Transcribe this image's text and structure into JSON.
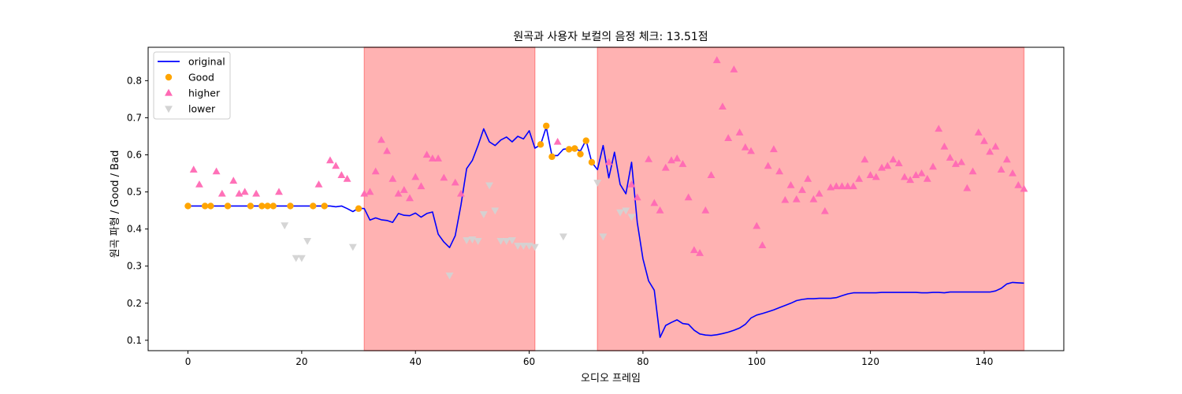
{
  "chart_data": {
    "type": "line",
    "title": "원곡과 사용자 보컬의 음정 체크: 13.51점",
    "xlabel": "오디오 프레임",
    "ylabel": "원곡 파형 / Good / Bad",
    "xlim": [
      -7,
      154
    ],
    "ylim": [
      0.072,
      0.89
    ],
    "x_ticks": [
      0,
      20,
      40,
      60,
      80,
      100,
      120,
      140
    ],
    "y_ticks": [
      0.1,
      0.2,
      0.3,
      0.4,
      0.5,
      0.6,
      0.7,
      0.8
    ],
    "grid": false,
    "legend_position": "top-left",
    "bad_regions": [
      [
        31,
        61
      ],
      [
        72,
        147
      ]
    ],
    "colors": {
      "original": "#0000ff",
      "good": "#ffa500",
      "higher": "#ff69b4",
      "lower": "#d3d3d3",
      "region": "#ff0000"
    },
    "series": [
      {
        "name": "original",
        "kind": "line",
        "x": [
          0,
          1,
          2,
          3,
          4,
          5,
          6,
          7,
          8,
          9,
          10,
          11,
          12,
          13,
          14,
          15,
          16,
          17,
          18,
          19,
          20,
          21,
          22,
          23,
          24,
          25,
          26,
          27,
          28,
          29,
          30,
          31,
          32,
          33,
          34,
          35,
          36,
          37,
          38,
          39,
          40,
          41,
          42,
          43,
          44,
          45,
          46,
          47,
          48,
          49,
          50,
          51,
          52,
          53,
          54,
          55,
          56,
          57,
          58,
          59,
          60,
          61,
          62,
          63,
          64,
          65,
          66,
          67,
          68,
          69,
          70,
          71,
          72,
          73,
          74,
          75,
          76,
          77,
          78,
          79,
          80,
          81,
          82,
          83,
          84,
          85,
          86,
          87,
          88,
          89,
          90,
          91,
          92,
          93,
          94,
          95,
          96,
          97,
          98,
          99,
          100,
          101,
          102,
          103,
          104,
          105,
          106,
          107,
          108,
          109,
          110,
          111,
          112,
          113,
          114,
          115,
          116,
          117,
          118,
          119,
          120,
          121,
          122,
          123,
          124,
          125,
          126,
          127,
          128,
          129,
          130,
          131,
          132,
          133,
          134,
          135,
          136,
          137,
          138,
          139,
          140,
          141,
          142,
          143,
          144,
          145,
          146,
          147
        ],
        "y": [
          0.462,
          0.462,
          0.462,
          0.462,
          0.462,
          0.462,
          0.462,
          0.462,
          0.462,
          0.462,
          0.462,
          0.462,
          0.462,
          0.462,
          0.462,
          0.462,
          0.462,
          0.462,
          0.462,
          0.462,
          0.462,
          0.462,
          0.462,
          0.462,
          0.462,
          0.462,
          0.46,
          0.462,
          0.455,
          0.447,
          0.456,
          0.455,
          0.424,
          0.43,
          0.425,
          0.423,
          0.418,
          0.442,
          0.437,
          0.436,
          0.443,
          0.432,
          0.442,
          0.446,
          0.386,
          0.365,
          0.35,
          0.382,
          0.465,
          0.563,
          0.585,
          0.625,
          0.67,
          0.635,
          0.625,
          0.64,
          0.648,
          0.635,
          0.65,
          0.643,
          0.665,
          0.618,
          0.627,
          0.675,
          0.598,
          0.598,
          0.615,
          0.617,
          0.618,
          0.61,
          0.64,
          0.58,
          0.56,
          0.625,
          0.538,
          0.607,
          0.52,
          0.495,
          0.58,
          0.418,
          0.32,
          0.26,
          0.235,
          0.108,
          0.14,
          0.148,
          0.155,
          0.145,
          0.143,
          0.127,
          0.117,
          0.114,
          0.113,
          0.115,
          0.118,
          0.122,
          0.127,
          0.133,
          0.143,
          0.16,
          0.168,
          0.172,
          0.177,
          0.182,
          0.188,
          0.194,
          0.2,
          0.207,
          0.21,
          0.212,
          0.212,
          0.213,
          0.213,
          0.213,
          0.215,
          0.22,
          0.225,
          0.228,
          0.228,
          0.228,
          0.228,
          0.228,
          0.229,
          0.229,
          0.229,
          0.229,
          0.229,
          0.229,
          0.229,
          0.228,
          0.228,
          0.229,
          0.229,
          0.228,
          0.23,
          0.23,
          0.23,
          0.23,
          0.23,
          0.23,
          0.23,
          0.23,
          0.233,
          0.24,
          0.252,
          0.256,
          0.255,
          0.254
        ]
      },
      {
        "name": "Good",
        "kind": "scatter",
        "marker": "circle",
        "x": [
          0,
          3,
          4,
          7,
          11,
          13,
          14,
          15,
          18,
          22,
          24,
          30,
          62,
          63,
          64,
          67,
          68,
          69,
          70,
          71
        ],
        "y": [
          0.462,
          0.462,
          0.462,
          0.462,
          0.462,
          0.462,
          0.462,
          0.462,
          0.462,
          0.462,
          0.462,
          0.455,
          0.628,
          0.678,
          0.595,
          0.615,
          0.617,
          0.602,
          0.638,
          0.58
        ]
      },
      {
        "name": "higher",
        "kind": "scatter",
        "marker": "triangle-up",
        "x": [
          1,
          2,
          5,
          6,
          8,
          9,
          10,
          12,
          16,
          23,
          25,
          26,
          27,
          28,
          31,
          32,
          33,
          34,
          35,
          36,
          37,
          38,
          39,
          40,
          41,
          42,
          43,
          44,
          45,
          47,
          48,
          65,
          74,
          78,
          79,
          81,
          82,
          83,
          84,
          85,
          86,
          87,
          88,
          89,
          90,
          91,
          92,
          93,
          94,
          95,
          96,
          97,
          98,
          99,
          100,
          101,
          102,
          103,
          104,
          105,
          106,
          107,
          108,
          109,
          110,
          111,
          112,
          113,
          114,
          115,
          116,
          117,
          118,
          119,
          120,
          121,
          122,
          123,
          124,
          125,
          126,
          127,
          128,
          129,
          130,
          131,
          132,
          133,
          134,
          135,
          136,
          137,
          138,
          139,
          140,
          141,
          142,
          143,
          144,
          145,
          146,
          147
        ],
        "y": [
          0.56,
          0.52,
          0.555,
          0.495,
          0.53,
          0.495,
          0.5,
          0.495,
          0.5,
          0.52,
          0.585,
          0.57,
          0.545,
          0.535,
          0.495,
          0.5,
          0.555,
          0.64,
          0.61,
          0.535,
          0.495,
          0.505,
          0.483,
          0.54,
          0.515,
          0.6,
          0.59,
          0.59,
          0.538,
          0.525,
          0.495,
          0.635,
          0.58,
          0.52,
          0.485,
          0.588,
          0.47,
          0.45,
          0.565,
          0.585,
          0.59,
          0.575,
          0.485,
          0.343,
          0.335,
          0.45,
          0.545,
          0.855,
          0.73,
          0.645,
          0.83,
          0.66,
          0.62,
          0.61,
          0.408,
          0.356,
          0.57,
          0.615,
          0.555,
          0.478,
          0.518,
          0.48,
          0.505,
          0.535,
          0.48,
          0.495,
          0.448,
          0.512,
          0.515,
          0.515,
          0.515,
          0.515,
          0.535,
          0.587,
          0.545,
          0.54,
          0.565,
          0.57,
          0.587,
          0.577,
          0.54,
          0.532,
          0.545,
          0.55,
          0.535,
          0.568,
          0.67,
          0.622,
          0.592,
          0.575,
          0.58,
          0.51,
          0.555,
          0.66,
          0.637,
          0.608,
          0.622,
          0.56,
          0.587,
          0.55,
          0.518,
          0.508
        ]
      },
      {
        "name": "lower",
        "kind": "scatter",
        "marker": "triangle-down",
        "x": [
          17,
          19,
          20,
          21,
          29,
          46,
          49,
          50,
          51,
          52,
          53,
          54,
          55,
          56,
          57,
          58,
          59,
          60,
          61,
          66,
          72,
          73,
          76,
          77,
          78
        ],
        "y": [
          0.41,
          0.322,
          0.322,
          0.368,
          0.352,
          0.275,
          0.37,
          0.372,
          0.368,
          0.44,
          0.518,
          0.45,
          0.368,
          0.368,
          0.37,
          0.355,
          0.355,
          0.355,
          0.352,
          0.38,
          0.525,
          0.38,
          0.445,
          0.45,
          0.433
        ]
      }
    ]
  }
}
